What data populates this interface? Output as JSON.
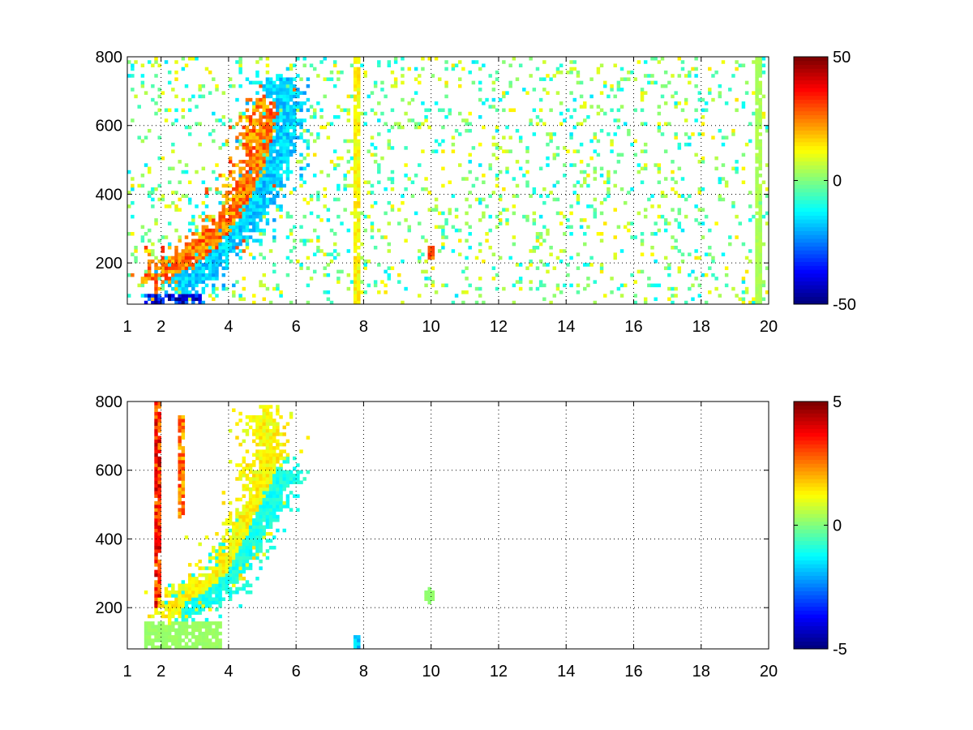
{
  "chart_data": [
    {
      "type": "heatmap",
      "title": "",
      "xlabel": "",
      "ylabel": "",
      "xlim": [
        1,
        20
      ],
      "ylim": [
        80,
        800
      ],
      "xticks": [
        1,
        2,
        4,
        6,
        8,
        10,
        12,
        14,
        16,
        18,
        20
      ],
      "yticks": [
        200,
        400,
        600,
        800
      ],
      "grid": true,
      "colormap": "jet",
      "clim": [
        -50,
        50
      ],
      "colorbar_ticks": [
        -50,
        0,
        50
      ],
      "features": [
        {
          "kind": "ridge",
          "points": [
            [
              2.1,
              170
            ],
            [
              2.6,
              200
            ],
            [
              3.2,
              240
            ],
            [
              3.8,
              290
            ],
            [
              4.2,
              350
            ],
            [
              4.5,
              420
            ],
            [
              4.8,
              500
            ],
            [
              5.0,
              580
            ],
            [
              5.2,
              650
            ]
          ],
          "value": 30
        },
        {
          "kind": "trough",
          "points": [
            [
              2.6,
              150
            ],
            [
              3.3,
              180
            ],
            [
              4.0,
              260
            ],
            [
              4.6,
              330
            ],
            [
              5.1,
              420
            ],
            [
              5.5,
              520
            ],
            [
              5.7,
              620
            ],
            [
              5.6,
              700
            ]
          ],
          "value": -20
        },
        {
          "kind": "column",
          "x": 7.8,
          "y": [
            80,
            800
          ],
          "value": 15
        },
        {
          "kind": "column",
          "x": 19.7,
          "y": [
            80,
            800
          ],
          "value": 5
        },
        {
          "kind": "spot",
          "x": 10.0,
          "y": 230,
          "value": 30
        },
        {
          "kind": "low",
          "x": [
            1.5,
            3.2
          ],
          "y": [
            80,
            110
          ],
          "value": -45
        }
      ],
      "background_noise": {
        "x_range": [
          1,
          20
        ],
        "y_range": [
          80,
          800
        ],
        "density": 0.12,
        "value_range": [
          -15,
          15
        ]
      }
    },
    {
      "type": "heatmap",
      "title": "",
      "xlabel": "",
      "ylabel": "",
      "xlim": [
        1,
        20
      ],
      "ylim": [
        80,
        800
      ],
      "xticks": [
        1,
        2,
        4,
        6,
        8,
        10,
        12,
        14,
        16,
        18,
        20
      ],
      "yticks": [
        200,
        400,
        600,
        800
      ],
      "grid": true,
      "colormap": "jet",
      "clim": [
        -5,
        5
      ],
      "colorbar_ticks": [
        -5,
        0,
        5
      ],
      "features": [
        {
          "kind": "ridge",
          "points": [
            [
              2.3,
              200
            ],
            [
              2.8,
              230
            ],
            [
              3.3,
              260
            ],
            [
              3.8,
              300
            ],
            [
              4.1,
              360
            ],
            [
              4.4,
              430
            ],
            [
              4.7,
              500
            ],
            [
              5.0,
              580
            ],
            [
              5.2,
              660
            ],
            [
              5.0,
              740
            ]
          ],
          "value": 1.5
        },
        {
          "kind": "trough",
          "points": [
            [
              2.8,
              210
            ],
            [
              3.4,
              240
            ],
            [
              4.0,
              290
            ],
            [
              4.5,
              380
            ],
            [
              5.0,
              460
            ],
            [
              5.4,
              540
            ],
            [
              5.6,
              580
            ]
          ],
          "value": -1.2
        },
        {
          "kind": "column",
          "x": 1.9,
          "y": [
            200,
            800
          ],
          "value": 4
        },
        {
          "kind": "column",
          "x": 2.6,
          "y": [
            460,
            760
          ],
          "value": 3
        },
        {
          "kind": "base",
          "x": [
            1.5,
            3.8
          ],
          "y": [
            80,
            160
          ],
          "value": 0.3
        },
        {
          "kind": "spot",
          "x": 7.8,
          "y": 100,
          "value": -2
        },
        {
          "kind": "spot",
          "x": 9.95,
          "y": 235,
          "value": 0.2
        }
      ],
      "background_noise": {
        "x_range": [
          1,
          20
        ],
        "y_range": [
          80,
          800
        ],
        "density": 0.0,
        "value_range": [
          -1,
          1
        ]
      }
    }
  ]
}
